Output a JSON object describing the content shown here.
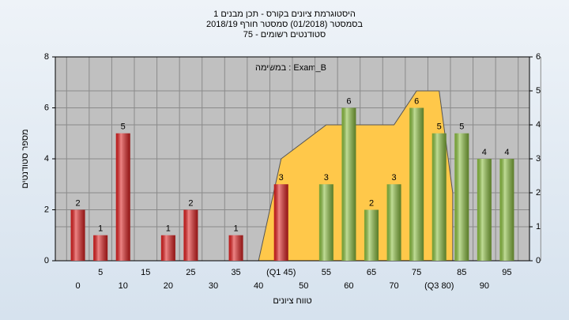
{
  "chart_data": {
    "type": "bar",
    "title": "היסטוגרמת ציונים בקורס - תכן מבנים 1",
    "subtitle": "בסמסטר  (01/2018)  סמסטר חורף 2018/19",
    "subtitle2": "סטודנטים רשומים - 75",
    "annotation": "במשימה : Exam_B",
    "x_label": "טווח ציונים",
    "y_label": "מספר סטודנטים",
    "categories": [
      "0",
      "5",
      "10",
      "15",
      "20",
      "25",
      "30",
      "35",
      "40",
      "(Q1 45)",
      "50",
      "55",
      "60",
      "65",
      "70",
      "75",
      "(Q3 80)",
      "85",
      "90",
      "95"
    ],
    "values": [
      2,
      1,
      5,
      0,
      1,
      2,
      0,
      1,
      0,
      3,
      0,
      3,
      6,
      2,
      3,
      6,
      5,
      5,
      4,
      4
    ],
    "colors": [
      "#e02020",
      "#e02020",
      "#e02020",
      "#e02020",
      "#e02020",
      "#e02020",
      "#e02020",
      "#e02020",
      "#e02020",
      "#e02020",
      "#8cc040",
      "#8cc040",
      "#8cc040",
      "#8cc040",
      "#8cc040",
      "#8cc040",
      "#8cc040",
      "#8cc040",
      "#8cc040",
      "#8cc040"
    ],
    "area": {
      "type": "area",
      "axis": "y2",
      "color": "#ffc84a",
      "x": [
        40,
        45,
        55,
        70,
        75,
        80,
        83
      ],
      "values": [
        0,
        3,
        4,
        4,
        5,
        5,
        2
      ]
    },
    "ylim": [
      0,
      8
    ],
    "yticks": [
      0,
      2,
      4,
      6,
      8
    ],
    "y2lim": [
      0,
      6
    ],
    "y2ticks": [
      0,
      1,
      2,
      3,
      4,
      5,
      6
    ],
    "grid": true
  }
}
